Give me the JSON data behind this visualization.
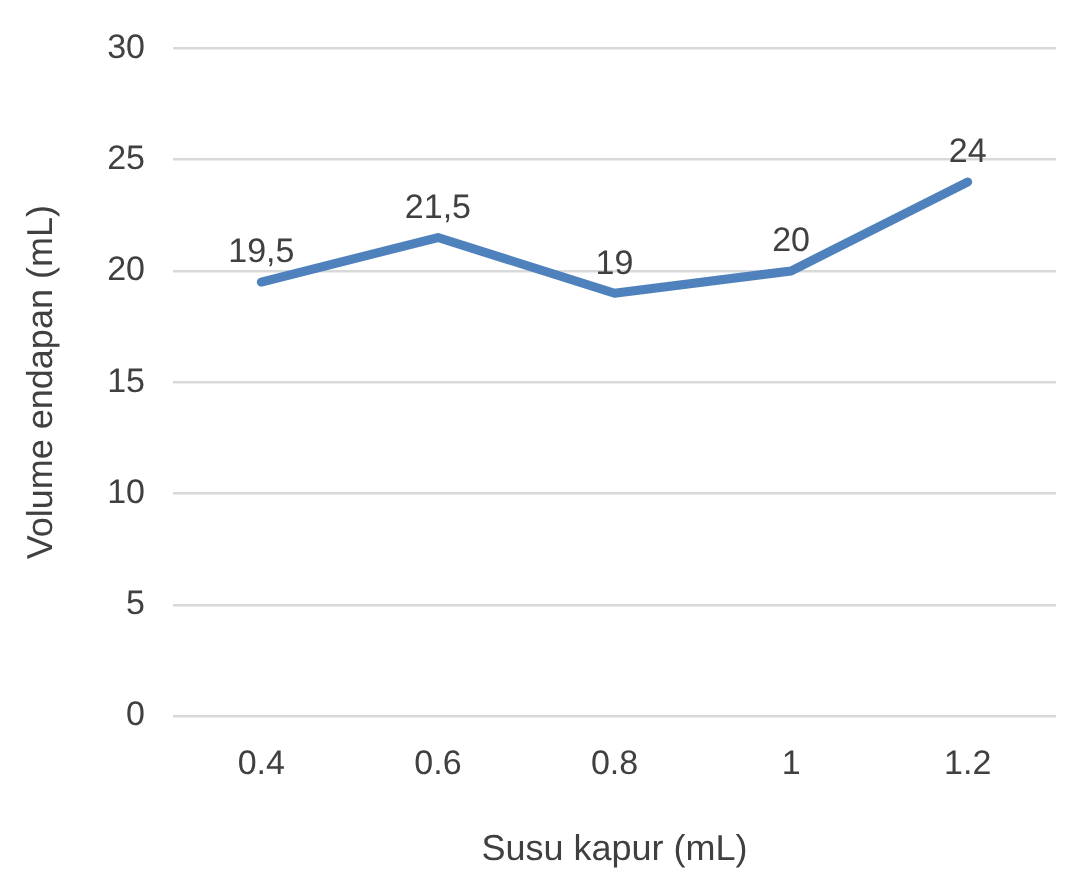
{
  "chart_data": {
    "type": "line",
    "xlabel": "Susu kapur (mL)",
    "ylabel": "Volume endapan (mL)",
    "categories": [
      "0.4",
      "0.6",
      "0.8",
      "1",
      "1.2"
    ],
    "series": [
      {
        "color": "#4f81bd",
        "values": [
          19.5,
          21.5,
          19,
          20,
          24
        ],
        "value_labels": [
          "19,5",
          "21,5",
          "19",
          "20",
          "24"
        ]
      }
    ],
    "ylim": [
      0,
      30
    ],
    "yticks": [
      0,
      5,
      10,
      15,
      20,
      25,
      30
    ],
    "grid": "y",
    "legend": false,
    "marker": "none",
    "line_style": "solid"
  }
}
